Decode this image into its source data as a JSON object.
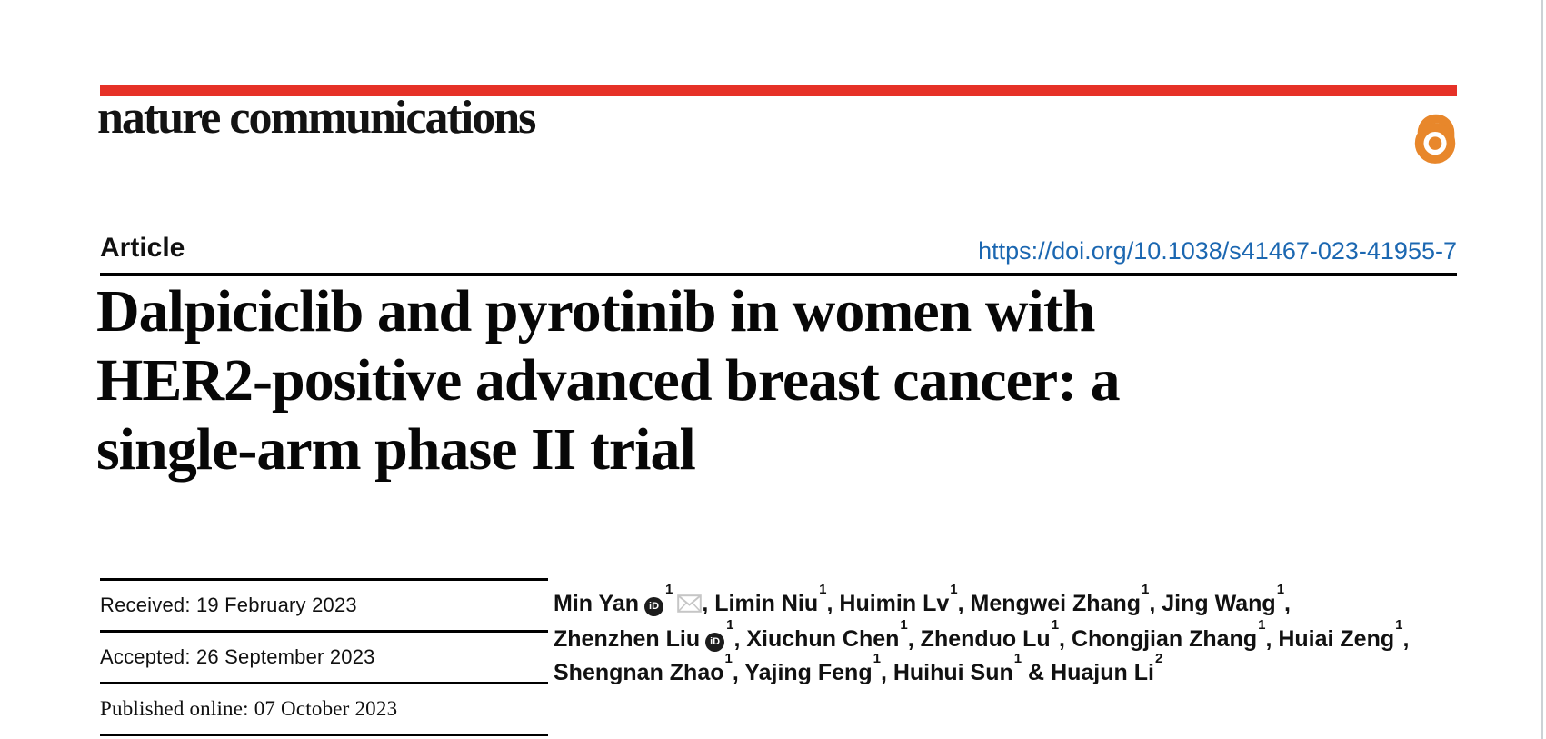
{
  "masthead": {
    "journal_name": "nature communications",
    "bar_color": "#e63127",
    "open_access_icon": "open-access-padlock",
    "open_access_color": "#e8872b"
  },
  "article_header": {
    "kicker": "Article",
    "doi_link": "https://doi.org/10.1038/s41467-023-41955-7",
    "doi_color": "#1b67b1",
    "title": "Dalpiciclib and pyrotinib in women with HER2-positive advanced breast cancer: a single-arm phase II trial",
    "title_lines": [
      "Dalpiciclib and pyrotinib in women with",
      "HER2-positive advanced breast cancer: a",
      "single-arm phase II trial"
    ]
  },
  "dates": {
    "rows": [
      {
        "text": "Received: 19 February 2023"
      },
      {
        "text": "Accepted: 26 September 2023"
      },
      {
        "text": "Published online: 07 October 2023"
      }
    ]
  },
  "authors": {
    "separator": ", ",
    "last_separator": " & ",
    "list": [
      {
        "name": "Min Yan",
        "sup": "1",
        "orcid": true,
        "email": true
      },
      {
        "name": "Limin Niu",
        "sup": "1"
      },
      {
        "name": "Huimin Lv",
        "sup": "1"
      },
      {
        "name": "Mengwei Zhang",
        "sup": "1"
      },
      {
        "name": "Jing Wang",
        "sup": "1",
        "break_after": true
      },
      {
        "name": "Zhenzhen Liu",
        "sup": "1",
        "orcid": true
      },
      {
        "name": "Xiuchun Chen",
        "sup": "1"
      },
      {
        "name": "Zhenduo Lu",
        "sup": "1"
      },
      {
        "name": "Chongjian Zhang",
        "sup": "1"
      },
      {
        "name": "Huiai Zeng",
        "sup": "1",
        "break_after": true
      },
      {
        "name": "Shengnan Zhao",
        "sup": "1"
      },
      {
        "name": "Yajing Feng",
        "sup": "1"
      },
      {
        "name": "Huihui Sun",
        "sup": "1"
      },
      {
        "name": "Huajun Li",
        "sup": "2"
      }
    ]
  }
}
